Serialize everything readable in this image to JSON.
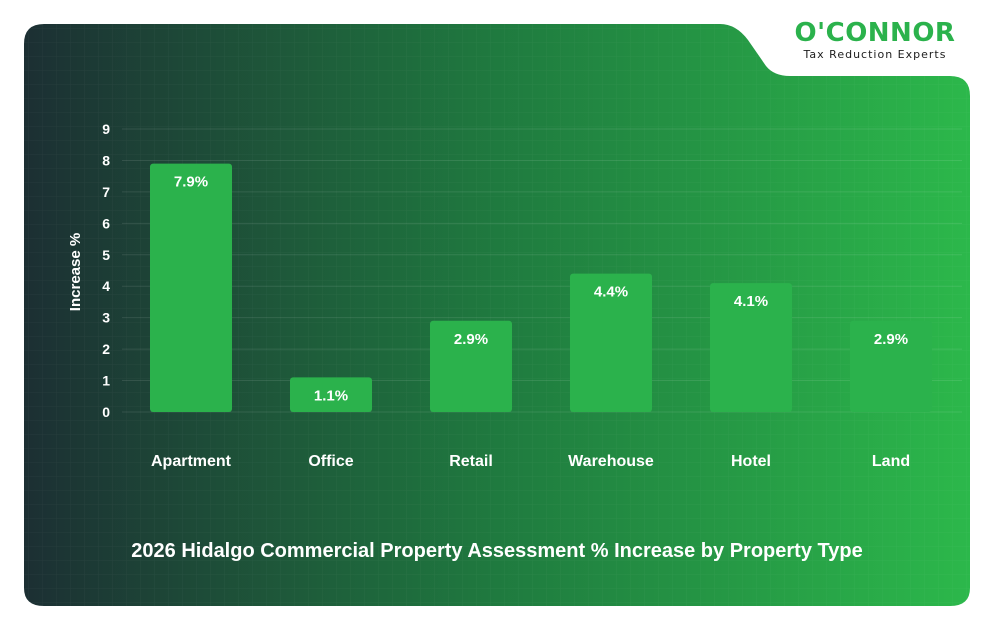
{
  "brand": {
    "name": "O'CONNOR",
    "tagline": "Tax Reduction Experts"
  },
  "colors": {
    "bar": "#2bb24c",
    "panel_dark": "#1d3a36",
    "panel_light": "#2cb84b",
    "text": "#ffffff"
  },
  "chart_data": {
    "type": "bar",
    "title": "2026 Hidalgo Commercial Property Assessment % Increase by Property Type",
    "xlabel": "",
    "ylabel": "Increase %",
    "categories": [
      "Apartment",
      "Office",
      "Retail",
      "Warehouse",
      "Hotel",
      "Land"
    ],
    "values": [
      7.9,
      1.1,
      2.9,
      4.4,
      4.1,
      2.9
    ],
    "data_labels": [
      "7.9%",
      "1.1%",
      "2.9%",
      "4.4%",
      "4.1%",
      "2.9%"
    ],
    "yticks": [
      "0",
      "1",
      "2",
      "3",
      "4",
      "5",
      "6",
      "7",
      "8",
      "9"
    ],
    "ylim": [
      0,
      9
    ],
    "grid": true,
    "legend": "none"
  }
}
